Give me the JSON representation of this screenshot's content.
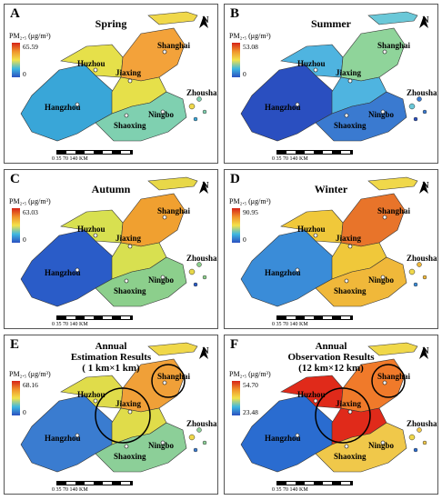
{
  "colors": {
    "low": "#2a4fc0",
    "midlow": "#3fb8e0",
    "mid": "#f2e24a",
    "midhigh": "#f0932b",
    "high": "#d62418",
    "sea": "#ffffff"
  },
  "legend_unit": "PM₂.₅ (μg/m³)",
  "coords": {
    "top": [
      "119°E",
      "121°E",
      "122°E"
    ],
    "side": [
      "31°N",
      "30°N"
    ]
  },
  "scale": {
    "ticks": "0  35  70      140 KM"
  },
  "north": "N",
  "panels": [
    {
      "letter": "A",
      "title": "Spring",
      "max": "65.59",
      "min": "0",
      "scheme": "spring"
    },
    {
      "letter": "B",
      "title": "Summer",
      "max": "53.08",
      "min": "0",
      "scheme": "summer"
    },
    {
      "letter": "C",
      "title": "Autumn",
      "max": "63.03",
      "min": "0",
      "scheme": "autumn"
    },
    {
      "letter": "D",
      "title": "Winter",
      "max": "90.95",
      "min": "0",
      "scheme": "winter"
    },
    {
      "letter": "E",
      "title": "Annual",
      "subtitle": "Estimation Results",
      "res": "( 1 km×1 km)",
      "max": "68.16",
      "min": "0",
      "scheme": "annual"
    },
    {
      "letter": "F",
      "title": "Annual",
      "subtitle": "Observation Results",
      "res": "(12 km×12 km)",
      "max": "54.70",
      "min": "23.48",
      "scheme": "obs"
    }
  ],
  "cities": {
    "shanghai": "Shanghai",
    "huzhou": "Huzhou",
    "jiaxing": "Jiaxing",
    "hangzhou": "Hangzhou",
    "shaoxing": "Shaoxing",
    "ningbo": "Ningbo",
    "zhoushan": "Zhoushan"
  }
}
